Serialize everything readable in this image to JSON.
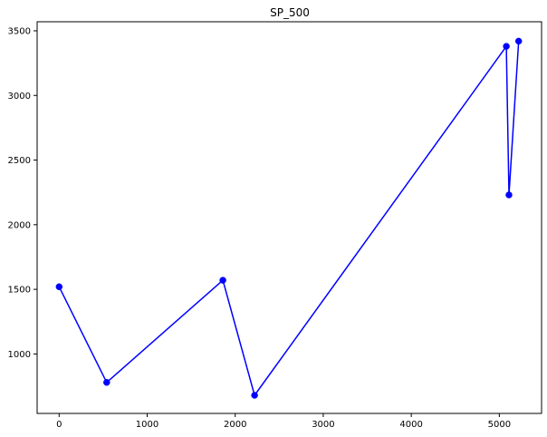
{
  "chart_data": {
    "type": "line",
    "title": "SP_500",
    "xlabel": "",
    "ylabel": "",
    "xlim": [
      -250,
      5480
    ],
    "ylim": [
      540,
      3570
    ],
    "xticks": [
      0,
      1000,
      2000,
      3000,
      4000,
      5000
    ],
    "yticks": [
      1000,
      1500,
      2000,
      2500,
      3000,
      3500
    ],
    "grid": false,
    "legend": "none",
    "series": [
      {
        "color": "#0000ff",
        "marker": "circle",
        "x": [
          0,
          540,
          1860,
          2220,
          5080,
          5110,
          5220
        ],
        "y": [
          1520,
          780,
          1570,
          680,
          3380,
          2230,
          3420
        ]
      }
    ]
  }
}
